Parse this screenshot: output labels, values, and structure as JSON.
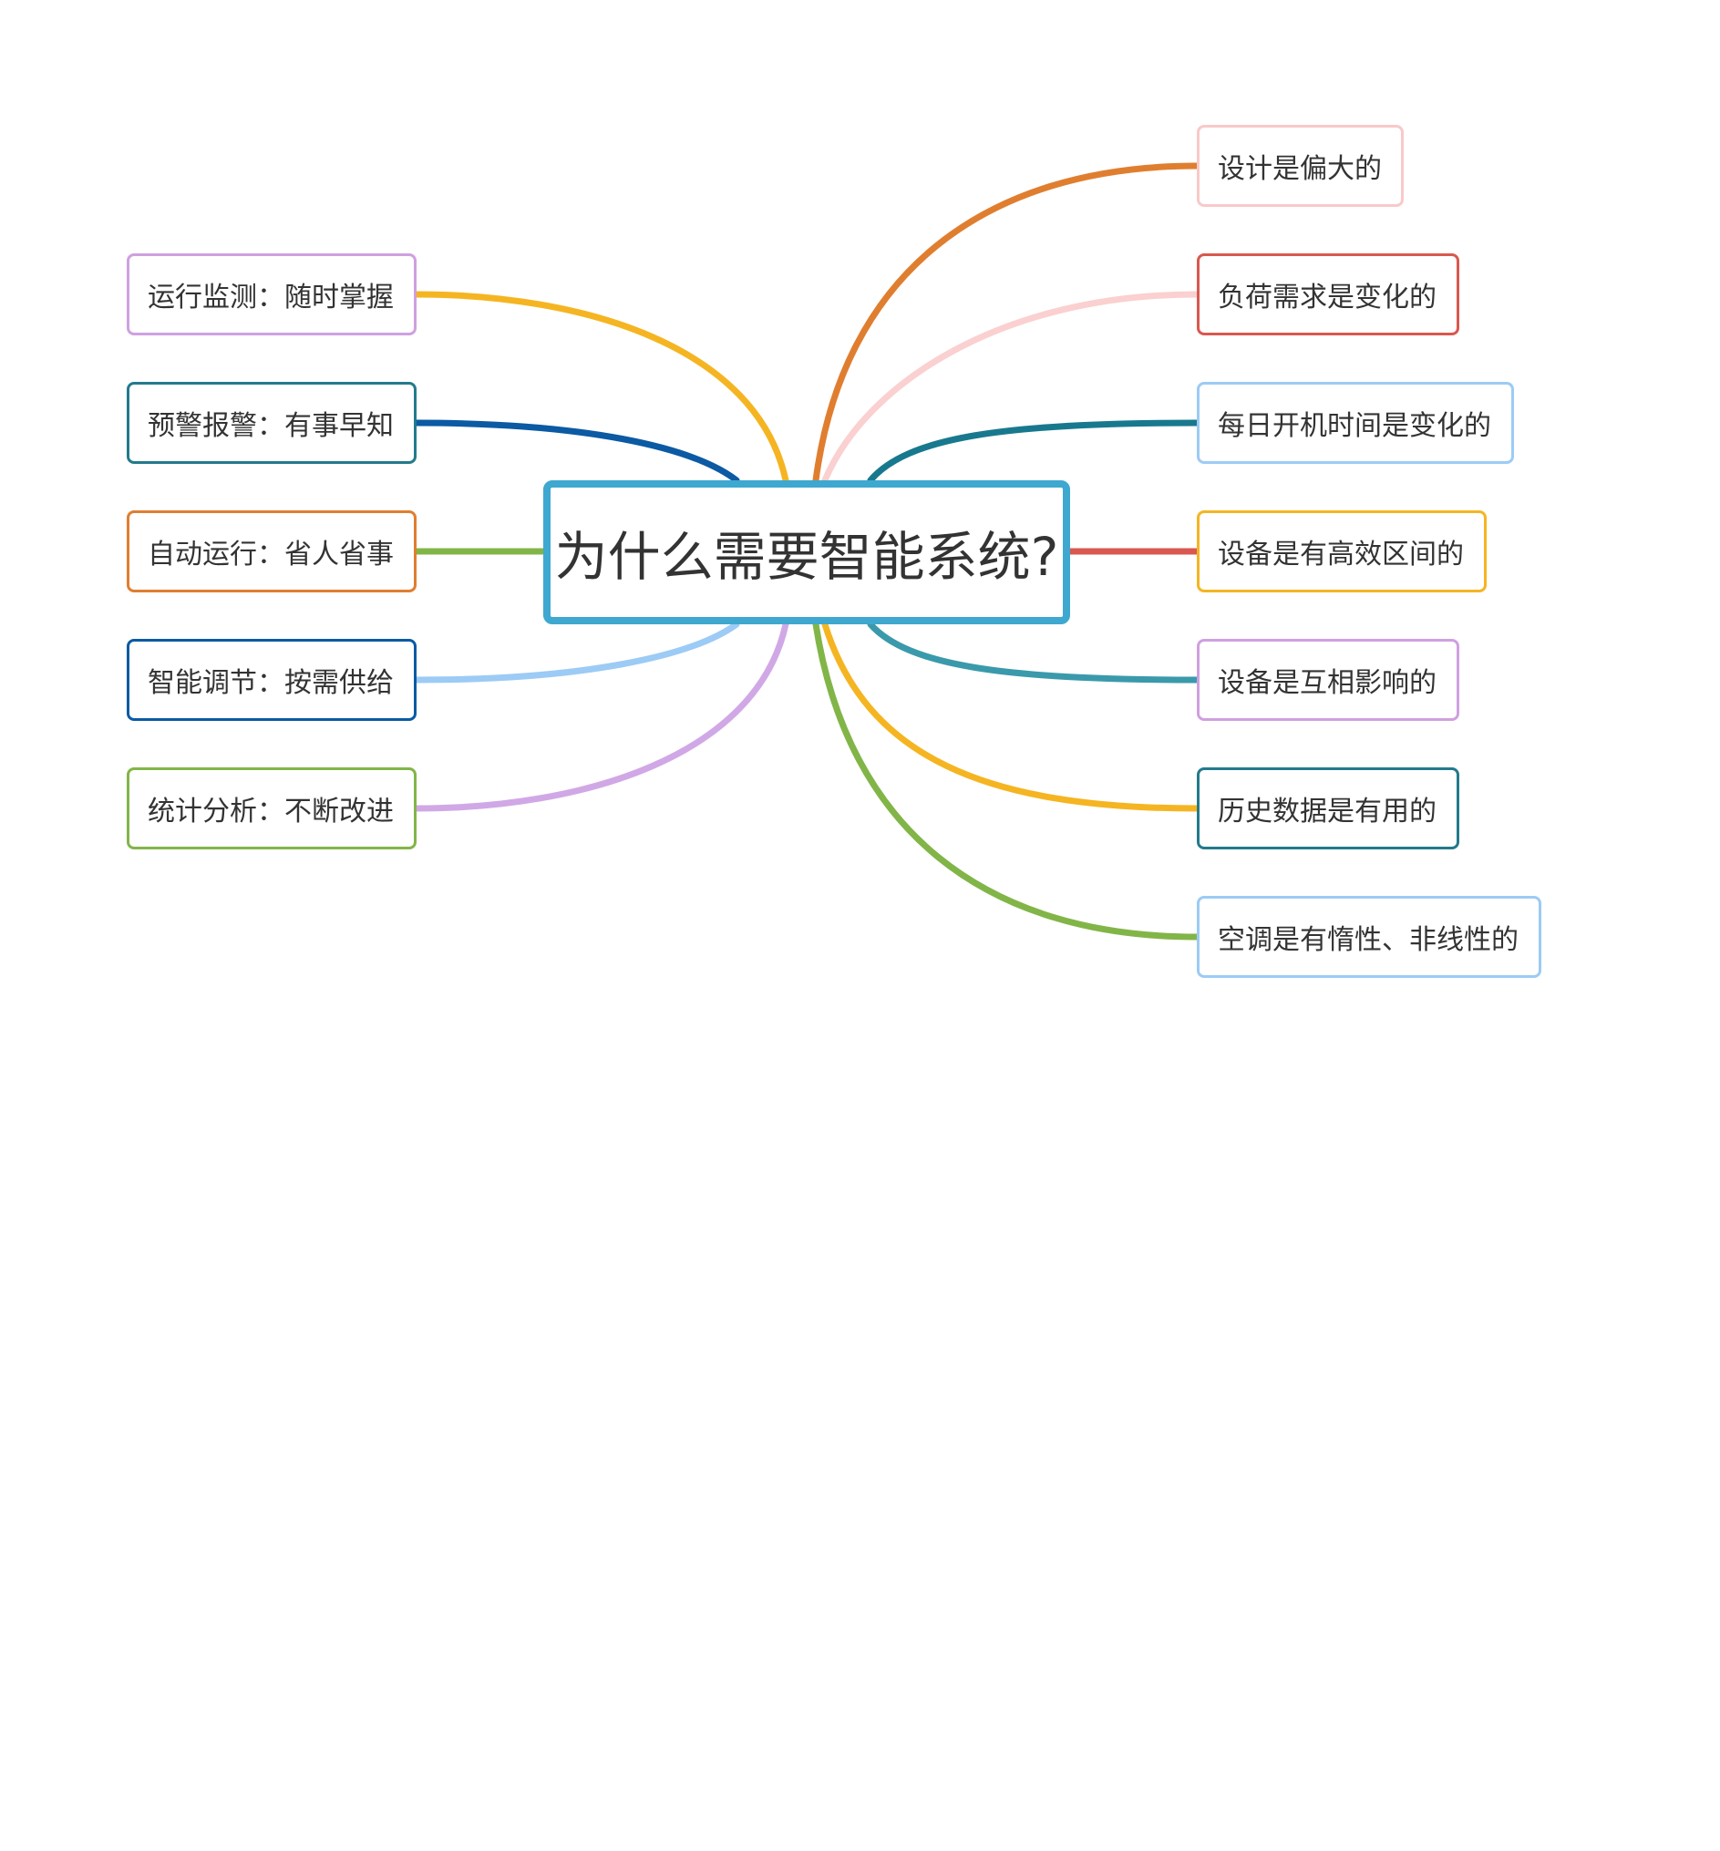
{
  "center": {
    "title": "为什么需要智能系统?",
    "border_color": "#3ea8d0"
  },
  "left_branches": [
    {
      "label": "运行监测：随时掌握",
      "color": "#f5b522",
      "border": "#cfa0e0"
    },
    {
      "label": "预警报警：有事早知",
      "color": "#0b5aa3",
      "border": "#237a8c"
    },
    {
      "label": "自动运行：省人省事",
      "color": "#82b548",
      "border": "#e07e30"
    },
    {
      "label": "智能调节：按需供给",
      "color": "#9ccbf5",
      "border": "#0b5aa3"
    },
    {
      "label": "统计分析：不断改进",
      "color": "#d1a8e6",
      "border": "#82b548"
    }
  ],
  "right_branches": [
    {
      "label": "设计是偏大的",
      "color": "#e07e30",
      "border": "#f9c9c9"
    },
    {
      "label": "负荷需求是变化的",
      "color": "#fbd0d0",
      "border": "#d9584f"
    },
    {
      "label": "每日开机时间是变化的",
      "color": "#18798e",
      "border": "#9ccbf5"
    },
    {
      "label": "设备是有高效区间的",
      "color": "#d9584f",
      "border": "#f5b522"
    },
    {
      "label": "设备是互相影响的",
      "color": "#3a9aab",
      "border": "#cfa0e0"
    },
    {
      "label": "历史数据是有用的",
      "color": "#f5b522",
      "border": "#237a8c"
    },
    {
      "label": "空调是有惰性、非线性的",
      "color": "#82b548",
      "border": "#9ccbf5"
    }
  ]
}
